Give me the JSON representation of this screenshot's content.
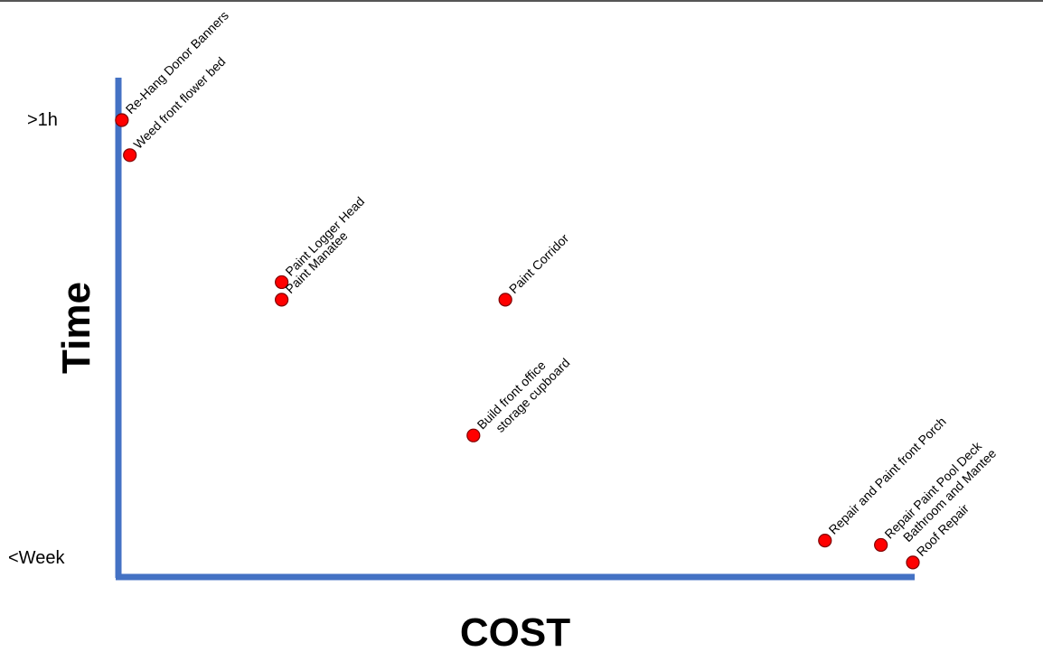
{
  "chart_data": {
    "type": "scatter",
    "xlabel": "COST",
    "ylabel": "Time",
    "y_ticks": {
      "top": ">1h",
      "bottom": "<Week"
    },
    "colors": {
      "axis": "#4472C4",
      "marker": "#FF0000",
      "marker_stroke": "#7F0000"
    },
    "points": [
      {
        "label": "Re-Hang Donor Banners",
        "cost": 0.01,
        "time": 1.0
      },
      {
        "label": "Weed front flower bed",
        "cost": 0.02,
        "time": 0.92
      },
      {
        "label": "Paint Logger Head",
        "cost": 0.21,
        "time": 0.63
      },
      {
        "label": "Paint Manatee",
        "cost": 0.21,
        "time": 0.59
      },
      {
        "label": "Paint Corridor",
        "cost": 0.49,
        "time": 0.59
      },
      {
        "label": [
          "Build front office",
          "storage cupboard"
        ],
        "cost": 0.45,
        "time": 0.28
      },
      {
        "label": "Repair and Paint front Porch",
        "cost": 0.89,
        "time": 0.04
      },
      {
        "label": [
          "Repair Paint Pool Deck",
          "Bathroom and Mantee"
        ],
        "cost": 0.96,
        "time": 0.03
      },
      {
        "label": "Roof Repair",
        "cost": 1.0,
        "time": -0.01
      }
    ]
  }
}
